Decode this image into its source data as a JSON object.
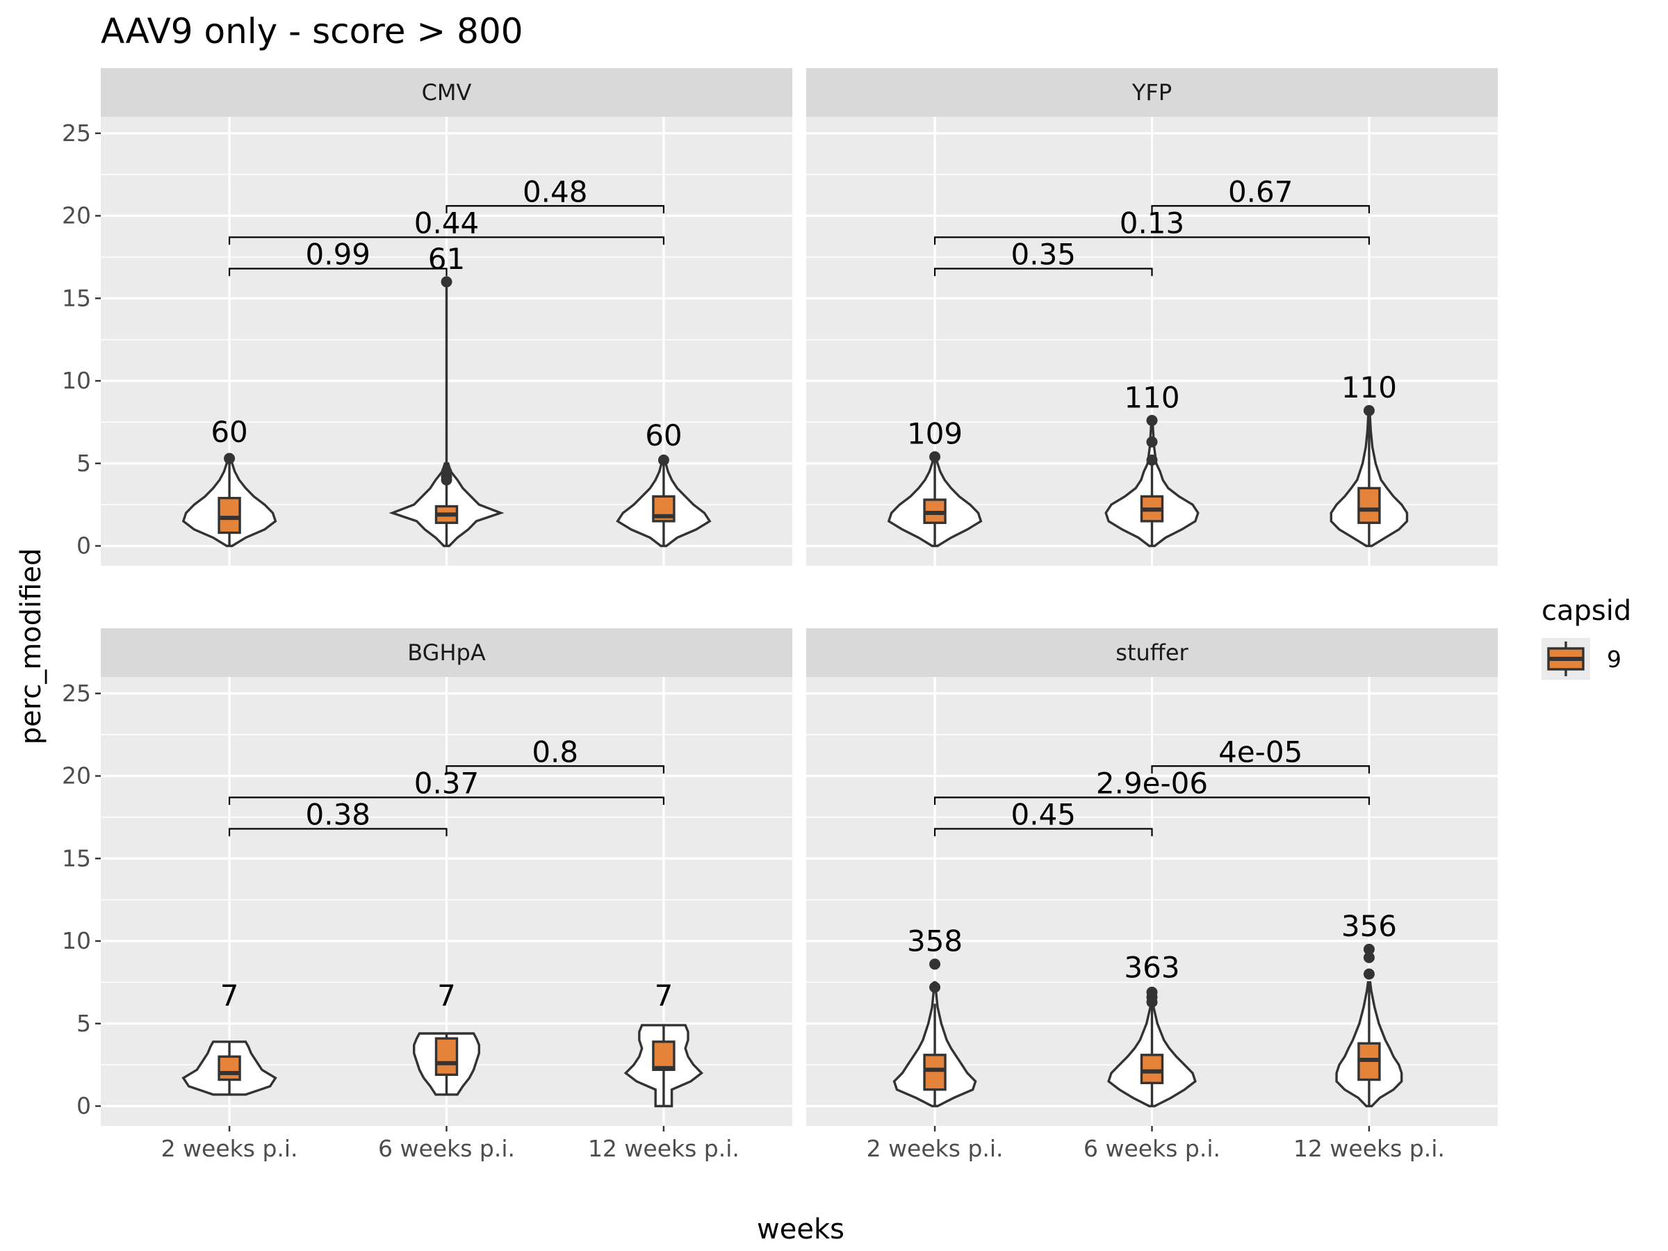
{
  "chart_data": {
    "type": "violin",
    "title": "AAV9 only - score > 800",
    "xlabel": "weeks",
    "ylabel": "perc_modified",
    "ylim": [
      -1.2,
      26
    ],
    "yticks": [
      0,
      5,
      10,
      15,
      20,
      25
    ],
    "categories": [
      "2 weeks p.i.",
      "6 weeks p.i.",
      "12 weeks p.i."
    ],
    "fill_color": "#e6833b",
    "legend": {
      "title": "capsid",
      "entries": [
        "9"
      ],
      "position": "right"
    },
    "grid": true,
    "panels": [
      {
        "name": "CMV",
        "groups": [
          {
            "category": "2 weeks p.i.",
            "n": "60",
            "min": 0,
            "max": 5.5,
            "q1": 0.8,
            "median": 1.7,
            "q3": 2.9,
            "whisker_low": 0,
            "whisker_high": 5.5,
            "outliers": [
              5.3
            ],
            "density": [
              [
                0,
                0.05
              ],
              [
                0.5,
                0.3
              ],
              [
                1.0,
                0.65
              ],
              [
                1.5,
                0.85
              ],
              [
                2.0,
                0.8
              ],
              [
                2.5,
                0.65
              ],
              [
                3.0,
                0.45
              ],
              [
                3.5,
                0.3
              ],
              [
                4.0,
                0.18
              ],
              [
                4.5,
                0.1
              ],
              [
                5.0,
                0.05
              ],
              [
                5.5,
                0.02
              ]
            ]
          },
          {
            "category": "6 weeks p.i.",
            "n": "61",
            "min": 0,
            "max": 16,
            "q1": 1.4,
            "median": 1.9,
            "q3": 2.4,
            "whisker_low": 0,
            "whisker_high": 16,
            "outliers": [
              4.0,
              4.2,
              4.5,
              16
            ],
            "density": [
              [
                0,
                0.05
              ],
              [
                0.5,
                0.2
              ],
              [
                1.0,
                0.4
              ],
              [
                1.5,
                0.55
              ],
              [
                2.0,
                1.0
              ],
              [
                2.5,
                0.6
              ],
              [
                3.0,
                0.45
              ],
              [
                3.5,
                0.3
              ],
              [
                4.0,
                0.2
              ],
              [
                4.5,
                0.08
              ],
              [
                5.0,
                0.03
              ]
            ]
          },
          {
            "category": "12 weeks p.i.",
            "n": "60",
            "min": 0,
            "max": 5.3,
            "q1": 1.5,
            "median": 1.8,
            "q3": 3.0,
            "whisker_low": 0,
            "whisker_high": 5.3,
            "outliers": [
              5.2
            ],
            "density": [
              [
                0,
                0.05
              ],
              [
                0.5,
                0.25
              ],
              [
                1.0,
                0.6
              ],
              [
                1.5,
                0.85
              ],
              [
                2.0,
                0.75
              ],
              [
                2.5,
                0.55
              ],
              [
                3.0,
                0.4
              ],
              [
                3.5,
                0.25
              ],
              [
                4.0,
                0.15
              ],
              [
                4.5,
                0.08
              ],
              [
                5.0,
                0.04
              ],
              [
                5.3,
                0.02
              ]
            ]
          }
        ],
        "comparisons": [
          {
            "from": 0,
            "to": 1,
            "label": "0.99",
            "y": 16.8
          },
          {
            "from": 0,
            "to": 2,
            "label": "0.44",
            "y": 18.7
          },
          {
            "from": 1,
            "to": 2,
            "label": "0.48",
            "y": 20.6
          }
        ]
      },
      {
        "name": "YFP",
        "groups": [
          {
            "category": "2 weeks p.i.",
            "n": "109",
            "min": 0,
            "max": 5.4,
            "q1": 1.4,
            "median": 2.0,
            "q3": 2.8,
            "whisker_low": 0,
            "whisker_high": 5.4,
            "outliers": [
              5.4
            ],
            "density": [
              [
                0,
                0.05
              ],
              [
                0.5,
                0.3
              ],
              [
                1.0,
                0.6
              ],
              [
                1.5,
                0.85
              ],
              [
                2.0,
                0.8
              ],
              [
                2.5,
                0.65
              ],
              [
                3.0,
                0.45
              ],
              [
                3.5,
                0.3
              ],
              [
                4.0,
                0.18
              ],
              [
                4.5,
                0.1
              ],
              [
                5.0,
                0.05
              ],
              [
                5.4,
                0.02
              ]
            ]
          },
          {
            "category": "6 weeks p.i.",
            "n": "110",
            "min": 0,
            "max": 7.6,
            "q1": 1.5,
            "median": 2.2,
            "q3": 3.0,
            "whisker_low": 0,
            "whisker_high": 5.0,
            "outliers": [
              5.2,
              6.3,
              7.6
            ],
            "density": [
              [
                0,
                0.05
              ],
              [
                0.5,
                0.25
              ],
              [
                1.0,
                0.55
              ],
              [
                1.5,
                0.8
              ],
              [
                2.0,
                0.85
              ],
              [
                2.5,
                0.75
              ],
              [
                3.0,
                0.5
              ],
              [
                3.5,
                0.3
              ],
              [
                4.0,
                0.2
              ],
              [
                4.5,
                0.15
              ],
              [
                5.0,
                0.08
              ],
              [
                6.0,
                0.04
              ],
              [
                7.0,
                0.02
              ],
              [
                7.6,
                0.01
              ]
            ]
          },
          {
            "category": "12 weeks p.i.",
            "n": "110",
            "min": 0,
            "max": 8.2,
            "q1": 1.4,
            "median": 2.2,
            "q3": 3.5,
            "whisker_low": 0,
            "whisker_high": 8.2,
            "outliers": [
              8.2
            ],
            "density": [
              [
                0,
                0.05
              ],
              [
                0.5,
                0.3
              ],
              [
                1.0,
                0.55
              ],
              [
                1.5,
                0.7
              ],
              [
                2.0,
                0.7
              ],
              [
                2.5,
                0.6
              ],
              [
                3.0,
                0.45
              ],
              [
                3.5,
                0.33
              ],
              [
                4.0,
                0.22
              ],
              [
                5.0,
                0.12
              ],
              [
                6.0,
                0.06
              ],
              [
                7.0,
                0.03
              ],
              [
                8.2,
                0.01
              ]
            ]
          }
        ],
        "comparisons": [
          {
            "from": 0,
            "to": 1,
            "label": "0.35",
            "y": 16.8
          },
          {
            "from": 0,
            "to": 2,
            "label": "0.13",
            "y": 18.7
          },
          {
            "from": 1,
            "to": 2,
            "label": "0.67",
            "y": 20.6
          }
        ]
      },
      {
        "name": "BGHpA",
        "groups": [
          {
            "category": "2 weeks p.i.",
            "n": "7",
            "min": 0.7,
            "max": 3.9,
            "q1": 1.6,
            "median": 2.0,
            "q3": 3.0,
            "whisker_low": 0.7,
            "whisker_high": 3.9,
            "outliers": [],
            "density": [
              [
                0.7,
                0.3
              ],
              [
                1.2,
                0.75
              ],
              [
                1.7,
                0.85
              ],
              [
                2.2,
                0.6
              ],
              [
                2.7,
                0.5
              ],
              [
                3.2,
                0.4
              ],
              [
                3.6,
                0.35
              ],
              [
                3.9,
                0.3
              ]
            ]
          },
          {
            "category": "6 weeks p.i.",
            "n": "7",
            "min": 0.7,
            "max": 4.4,
            "q1": 1.9,
            "median": 2.6,
            "q3": 4.1,
            "whisker_low": 0.7,
            "whisker_high": 4.4,
            "outliers": [],
            "density": [
              [
                0.7,
                0.2
              ],
              [
                1.2,
                0.3
              ],
              [
                1.7,
                0.42
              ],
              [
                2.2,
                0.5
              ],
              [
                2.7,
                0.55
              ],
              [
                3.2,
                0.6
              ],
              [
                3.7,
                0.6
              ],
              [
                4.1,
                0.55
              ],
              [
                4.4,
                0.5
              ]
            ]
          },
          {
            "category": "12 weeks p.i.",
            "n": "7",
            "min": 0,
            "max": 4.9,
            "q1": 2.2,
            "median": 2.3,
            "q3": 3.9,
            "whisker_low": 0,
            "whisker_high": 4.9,
            "outliers": [],
            "density": [
              [
                0,
                0.15
              ],
              [
                0.5,
                0.15
              ],
              [
                1.0,
                0.15
              ],
              [
                1.5,
                0.5
              ],
              [
                2.0,
                0.7
              ],
              [
                2.5,
                0.55
              ],
              [
                3.0,
                0.45
              ],
              [
                3.5,
                0.4
              ],
              [
                4.0,
                0.45
              ],
              [
                4.5,
                0.45
              ],
              [
                4.9,
                0.4
              ]
            ]
          }
        ],
        "comparisons": [
          {
            "from": 0,
            "to": 1,
            "label": "0.38",
            "y": 16.8
          },
          {
            "from": 0,
            "to": 2,
            "label": "0.37",
            "y": 18.7
          },
          {
            "from": 1,
            "to": 2,
            "label": "0.8",
            "y": 20.6
          }
        ]
      },
      {
        "name": "stuffer",
        "groups": [
          {
            "category": "2 weeks p.i.",
            "n": "358",
            "min": 0,
            "max": 8.6,
            "q1": 1.0,
            "median": 2.2,
            "q3": 3.1,
            "whisker_low": 0,
            "whisker_high": 6.2,
            "outliers": [
              7.2,
              8.6
            ],
            "density": [
              [
                0,
                0.05
              ],
              [
                0.5,
                0.35
              ],
              [
                1.0,
                0.7
              ],
              [
                1.5,
                0.75
              ],
              [
                2.0,
                0.6
              ],
              [
                2.5,
                0.5
              ],
              [
                3.0,
                0.4
              ],
              [
                3.5,
                0.3
              ],
              [
                4.0,
                0.22
              ],
              [
                5.0,
                0.12
              ],
              [
                6.0,
                0.05
              ],
              [
                7.0,
                0.02
              ],
              [
                7.5,
                0.01
              ]
            ]
          },
          {
            "category": "6 weeks p.i.",
            "n": "363",
            "min": 0,
            "max": 7.0,
            "q1": 1.4,
            "median": 2.1,
            "q3": 3.1,
            "whisker_low": 0,
            "whisker_high": 6.0,
            "outliers": [
              6.3,
              6.6,
              6.9
            ],
            "density": [
              [
                0,
                0.05
              ],
              [
                0.5,
                0.35
              ],
              [
                1.0,
                0.6
              ],
              [
                1.5,
                0.8
              ],
              [
                2.0,
                0.75
              ],
              [
                2.5,
                0.6
              ],
              [
                3.0,
                0.45
              ],
              [
                3.5,
                0.32
              ],
              [
                4.0,
                0.22
              ],
              [
                5.0,
                0.1
              ],
              [
                6.0,
                0.03
              ],
              [
                6.5,
                0.01
              ]
            ]
          },
          {
            "category": "12 weeks p.i.",
            "n": "356",
            "min": 0,
            "max": 9.5,
            "q1": 1.6,
            "median": 2.8,
            "q3": 3.8,
            "whisker_low": 0,
            "whisker_high": 7.5,
            "outliers": [
              8.0,
              9.0,
              9.5
            ],
            "density": [
              [
                0,
                0.05
              ],
              [
                0.5,
                0.2
              ],
              [
                1.0,
                0.45
              ],
              [
                1.5,
                0.6
              ],
              [
                2.0,
                0.6
              ],
              [
                2.5,
                0.55
              ],
              [
                3.0,
                0.45
              ],
              [
                3.5,
                0.38
              ],
              [
                4.0,
                0.3
              ],
              [
                5.0,
                0.18
              ],
              [
                6.0,
                0.1
              ],
              [
                7.0,
                0.04
              ],
              [
                7.5,
                0.02
              ]
            ]
          }
        ],
        "comparisons": [
          {
            "from": 0,
            "to": 1,
            "label": "0.45",
            "y": 16.8
          },
          {
            "from": 0,
            "to": 2,
            "label": "2.9e-06",
            "y": 18.7
          },
          {
            "from": 1,
            "to": 2,
            "label": "4e-05",
            "y": 20.6
          }
        ]
      }
    ]
  }
}
